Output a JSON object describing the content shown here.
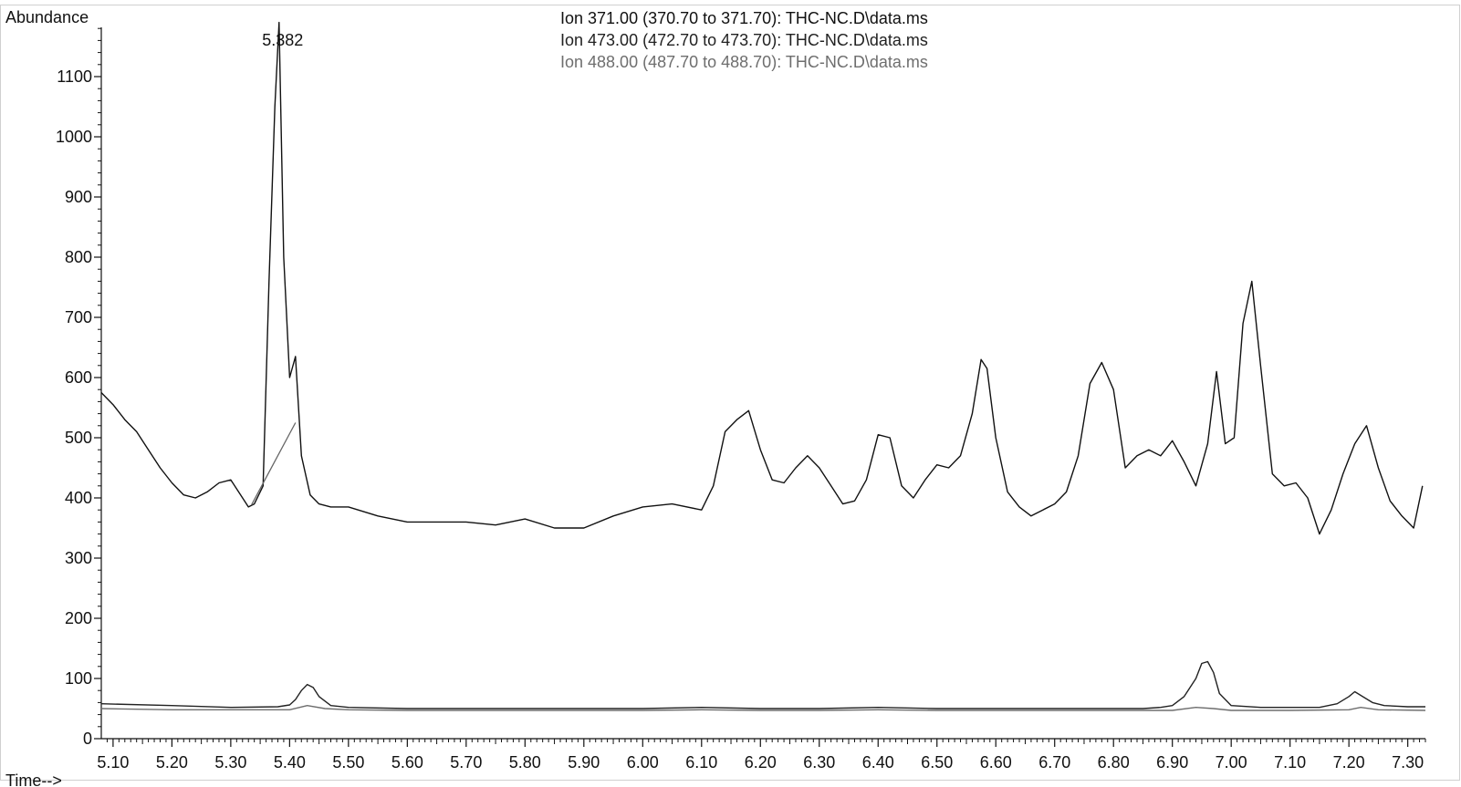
{
  "chart_data": {
    "type": "line",
    "title": "",
    "ylabel": "Abundance",
    "xlabel": "Time-->",
    "xlim": [
      5.08,
      7.33
    ],
    "ylim": [
      0,
      1200
    ],
    "x_ticks": [
      "5.10",
      "5.20",
      "5.30",
      "5.40",
      "5.50",
      "5.60",
      "5.70",
      "5.80",
      "5.90",
      "6.00",
      "6.10",
      "6.20",
      "6.30",
      "6.40",
      "6.50",
      "6.60",
      "6.70",
      "6.80",
      "6.90",
      "7.00",
      "7.10",
      "7.20",
      "7.30"
    ],
    "y_ticks": [
      "0",
      "100",
      "200",
      "300",
      "400",
      "500",
      "600",
      "700",
      "800",
      "900",
      "1000",
      "1100"
    ],
    "grid": false,
    "legend_position": "top-center",
    "peak_annotation": {
      "label": "5.382",
      "x": 5.382,
      "y": 1190
    },
    "baseline_segment": {
      "x": [
        5.335,
        5.41
      ],
      "y": [
        388,
        525
      ]
    },
    "series": [
      {
        "name": "Ion 371.00 (370.70 to 371.70): THC-NC.D\\data.ms",
        "color": "#111111",
        "x": [
          5.08,
          5.1,
          5.12,
          5.14,
          5.16,
          5.18,
          5.2,
          5.22,
          5.24,
          5.26,
          5.28,
          5.3,
          5.32,
          5.33,
          5.34,
          5.355,
          5.365,
          5.375,
          5.382,
          5.39,
          5.4,
          5.41,
          5.42,
          5.435,
          5.45,
          5.47,
          5.5,
          5.55,
          5.6,
          5.65,
          5.7,
          5.75,
          5.8,
          5.85,
          5.9,
          5.95,
          6.0,
          6.05,
          6.1,
          6.12,
          6.14,
          6.16,
          6.18,
          6.2,
          6.22,
          6.24,
          6.26,
          6.28,
          6.3,
          6.32,
          6.34,
          6.36,
          6.38,
          6.4,
          6.42,
          6.44,
          6.46,
          6.48,
          6.5,
          6.52,
          6.54,
          6.56,
          6.575,
          6.585,
          6.6,
          6.62,
          6.64,
          6.66,
          6.68,
          6.7,
          6.72,
          6.74,
          6.76,
          6.78,
          6.8,
          6.82,
          6.84,
          6.86,
          6.88,
          6.9,
          6.92,
          6.94,
          6.96,
          6.975,
          6.99,
          7.005,
          7.02,
          7.035,
          7.05,
          7.07,
          7.09,
          7.11,
          7.13,
          7.15,
          7.17,
          7.19,
          7.21,
          7.23,
          7.25,
          7.27,
          7.29,
          7.31,
          7.325
        ],
        "y": [
          575,
          555,
          530,
          510,
          480,
          450,
          425,
          405,
          400,
          410,
          425,
          430,
          400,
          385,
          390,
          420,
          760,
          1050,
          1190,
          800,
          600,
          635,
          470,
          405,
          390,
          385,
          385,
          370,
          360,
          360,
          360,
          355,
          365,
          350,
          350,
          370,
          385,
          390,
          380,
          420,
          510,
          530,
          545,
          480,
          430,
          425,
          450,
          470,
          450,
          420,
          390,
          395,
          430,
          505,
          500,
          420,
          400,
          430,
          455,
          450,
          470,
          540,
          630,
          615,
          500,
          410,
          385,
          370,
          380,
          390,
          410,
          470,
          590,
          625,
          580,
          450,
          470,
          480,
          470,
          495,
          460,
          420,
          490,
          610,
          490,
          500,
          690,
          760,
          620,
          440,
          420,
          425,
          400,
          340,
          380,
          440,
          490,
          520,
          450,
          395,
          370,
          350,
          420
        ]
      },
      {
        "name": "Ion 473.00 (472.70 to 473.70): THC-NC.D\\data.ms",
        "color": "#222222",
        "x": [
          5.08,
          5.2,
          5.3,
          5.38,
          5.4,
          5.41,
          5.42,
          5.43,
          5.44,
          5.45,
          5.47,
          5.5,
          5.6,
          5.7,
          5.8,
          5.9,
          6.0,
          6.1,
          6.2,
          6.3,
          6.4,
          6.5,
          6.6,
          6.7,
          6.8,
          6.85,
          6.88,
          6.9,
          6.92,
          6.94,
          6.95,
          6.96,
          6.97,
          6.98,
          7.0,
          7.05,
          7.1,
          7.15,
          7.18,
          7.2,
          7.21,
          7.22,
          7.24,
          7.26,
          7.3,
          7.33
        ],
        "y": [
          58,
          55,
          52,
          53,
          56,
          65,
          80,
          90,
          85,
          70,
          55,
          52,
          50,
          50,
          50,
          50,
          50,
          52,
          50,
          50,
          52,
          50,
          50,
          50,
          50,
          50,
          52,
          55,
          70,
          100,
          125,
          128,
          110,
          75,
          55,
          52,
          52,
          52,
          58,
          70,
          78,
          72,
          60,
          55,
          53,
          53
        ]
      },
      {
        "name": "Ion 488.00 (487.70 to 488.70): THC-NC.D\\data.ms",
        "color": "#6e6e6e",
        "x": [
          5.08,
          5.2,
          5.3,
          5.4,
          5.43,
          5.46,
          5.5,
          5.6,
          5.7,
          5.8,
          5.9,
          6.0,
          6.1,
          6.2,
          6.3,
          6.4,
          6.5,
          6.6,
          6.7,
          6.8,
          6.9,
          6.94,
          6.97,
          7.0,
          7.1,
          7.2,
          7.22,
          7.25,
          7.33
        ],
        "y": [
          50,
          48,
          48,
          48,
          55,
          50,
          48,
          47,
          47,
          47,
          47,
          47,
          48,
          47,
          47,
          48,
          47,
          47,
          47,
          47,
          47,
          52,
          50,
          47,
          47,
          48,
          52,
          48,
          47
        ]
      }
    ]
  }
}
